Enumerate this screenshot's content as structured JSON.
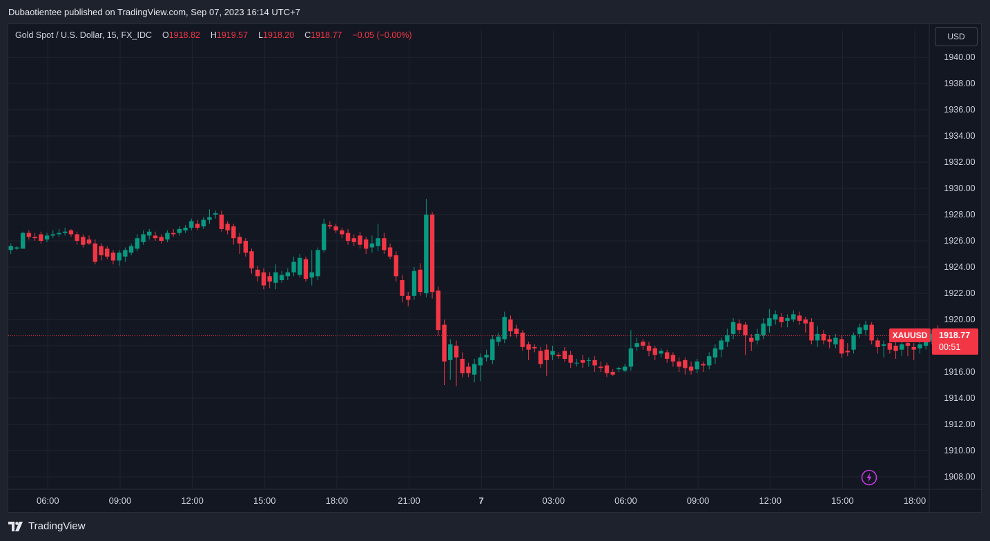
{
  "header": {
    "publisher_line": "Dubaotientee published on TradingView.com, Sep 07, 2023 16:14 UTC+7"
  },
  "legend": {
    "symbol_line": "Gold Spot / U.S. Dollar, 15, FX_IDC",
    "open_label": "O",
    "open_value": "1918.82",
    "high_label": "H",
    "high_value": "1919.57",
    "low_label": "L",
    "low_value": "1918.20",
    "close_label": "C",
    "close_value": "1918.77",
    "change": "−0.05 (−0.00%)"
  },
  "toolbar": {
    "currency_label": "USD"
  },
  "last_price": {
    "symbol": "XAUUSD",
    "price": "1918.77",
    "price_value": 1918.77,
    "countdown": "00:51"
  },
  "footer": {
    "brand": "TradingView"
  },
  "colors": {
    "background": "#131722",
    "frame": "#1e222d",
    "grid": "#1f2430",
    "up": "#089981",
    "down": "#f23645",
    "text": "#d1d4dc"
  },
  "icons": {
    "brand_logo": "tradingview-logo-icon",
    "bolt": "lightning-bolt-icon"
  },
  "chart_data": {
    "type": "candlestick",
    "interval": "15",
    "ylim": [
      1906.5,
      1941.0
    ],
    "y_ticks": [
      1940,
      1938,
      1936,
      1934,
      1932,
      1930,
      1928,
      1926,
      1924,
      1922,
      1920,
      1918,
      1916,
      1914,
      1912,
      1910,
      1908
    ],
    "y_tick_labels": [
      "1940.00",
      "1938.00",
      "1936.00",
      "1934.00",
      "1932.00",
      "1930.00",
      "1928.00",
      "1926.00",
      "1924.00",
      "1922.00",
      "1920.00",
      "1918.00",
      "1916.00",
      "1914.00",
      "1912.00",
      "1910.00",
      "1908.00"
    ],
    "x_tick_labels": [
      "06:00",
      "09:00",
      "12:00",
      "15:00",
      "18:00",
      "21:00",
      "7",
      "03:00",
      "06:00",
      "09:00",
      "12:00",
      "15:00",
      "18:00"
    ],
    "x_tick_bar_index": [
      6,
      18,
      30,
      42,
      54,
      66,
      78,
      90,
      102,
      114,
      126,
      138,
      150
    ],
    "candles": [
      [
        1925.3,
        1925.6,
        1925.0,
        1925.8
      ],
      [
        1925.4,
        1925.5,
        1925.3,
        1925.6
      ],
      [
        1925.4,
        1926.6,
        1925.4,
        1926.7
      ],
      [
        1926.6,
        1926.3,
        1926.1,
        1926.8
      ],
      [
        1926.3,
        1926.2,
        1926.0,
        1926.6
      ],
      [
        1926.5,
        1926.0,
        1925.8,
        1926.7
      ],
      [
        1926.1,
        1926.4,
        1925.9,
        1926.6
      ],
      [
        1926.4,
        1926.5,
        1926.2,
        1926.8
      ],
      [
        1926.5,
        1926.6,
        1926.3,
        1926.9
      ],
      [
        1926.6,
        1926.7,
        1926.4,
        1927.0
      ],
      [
        1926.8,
        1926.5,
        1926.3,
        1926.9
      ],
      [
        1926.5,
        1926.0,
        1925.7,
        1926.7
      ],
      [
        1926.3,
        1925.7,
        1925.5,
        1926.5
      ],
      [
        1926.1,
        1925.8,
        1925.7,
        1926.4
      ],
      [
        1925.8,
        1924.4,
        1924.2,
        1926.1
      ],
      [
        1925.6,
        1924.9,
        1924.5,
        1925.8
      ],
      [
        1925.4,
        1924.8,
        1924.6,
        1925.6
      ],
      [
        1925.1,
        1924.5,
        1924.2,
        1925.3
      ],
      [
        1924.5,
        1925.1,
        1924.1,
        1925.3
      ],
      [
        1924.8,
        1925.3,
        1924.4,
        1925.5
      ],
      [
        1925.1,
        1925.6,
        1924.9,
        1925.8
      ],
      [
        1925.4,
        1926.2,
        1925.2,
        1926.5
      ],
      [
        1925.9,
        1926.5,
        1925.7,
        1926.8
      ],
      [
        1926.4,
        1926.7,
        1926.1,
        1926.9
      ],
      [
        1926.4,
        1926.2,
        1926.0,
        1926.7
      ],
      [
        1926.3,
        1926.0,
        1925.8,
        1926.5
      ],
      [
        1926.1,
        1926.6,
        1925.9,
        1926.8
      ],
      [
        1926.6,
        1926.5,
        1926.3,
        1926.9
      ],
      [
        1926.6,
        1926.9,
        1926.4,
        1927.1
      ],
      [
        1926.8,
        1927.0,
        1926.6,
        1927.2
      ],
      [
        1927.0,
        1927.5,
        1926.8,
        1927.7
      ],
      [
        1927.3,
        1927.0,
        1926.8,
        1927.6
      ],
      [
        1927.1,
        1927.6,
        1926.9,
        1927.8
      ],
      [
        1927.6,
        1927.8,
        1927.3,
        1928.4
      ],
      [
        1928.0,
        1928.1,
        1927.7,
        1928.3
      ],
      [
        1928.0,
        1926.9,
        1926.7,
        1928.3
      ],
      [
        1927.3,
        1926.8,
        1926.5,
        1927.5
      ],
      [
        1927.1,
        1926.2,
        1925.7,
        1927.3
      ],
      [
        1926.3,
        1925.8,
        1925.0,
        1926.6
      ],
      [
        1926.0,
        1925.1,
        1924.8,
        1926.2
      ],
      [
        1925.2,
        1923.9,
        1923.5,
        1925.4
      ],
      [
        1923.8,
        1923.3,
        1922.9,
        1924.1
      ],
      [
        1923.6,
        1922.6,
        1922.3,
        1923.9
      ],
      [
        1923.3,
        1922.9,
        1922.4,
        1923.6
      ],
      [
        1922.8,
        1923.6,
        1922.3,
        1924.2
      ],
      [
        1923.0,
        1923.4,
        1922.8,
        1923.7
      ],
      [
        1923.3,
        1923.6,
        1923.0,
        1923.9
      ],
      [
        1923.6,
        1924.4,
        1923.3,
        1924.8
      ],
      [
        1923.4,
        1924.7,
        1923.2,
        1925.0
      ],
      [
        1924.6,
        1923.1,
        1922.9,
        1924.8
      ],
      [
        1923.2,
        1923.6,
        1922.6,
        1925.3
      ],
      [
        1923.3,
        1925.3,
        1923.0,
        1925.5
      ],
      [
        1925.3,
        1927.3,
        1925.1,
        1927.7
      ],
      [
        1927.2,
        1927.1,
        1926.9,
        1927.5
      ],
      [
        1927.1,
        1926.8,
        1926.6,
        1927.3
      ],
      [
        1926.8,
        1926.5,
        1926.2,
        1927.0
      ],
      [
        1926.6,
        1926.0,
        1925.7,
        1926.9
      ],
      [
        1926.2,
        1925.9,
        1925.6,
        1926.5
      ],
      [
        1926.4,
        1925.7,
        1925.4,
        1926.7
      ],
      [
        1926.1,
        1925.4,
        1925.0,
        1926.3
      ],
      [
        1925.5,
        1925.8,
        1925.1,
        1926.4
      ],
      [
        1925.6,
        1926.2,
        1925.2,
        1927.3
      ],
      [
        1926.2,
        1925.3,
        1925.0,
        1926.6
      ],
      [
        1925.5,
        1924.8,
        1924.6,
        1925.8
      ],
      [
        1924.9,
        1923.3,
        1922.9,
        1925.2
      ],
      [
        1923.0,
        1921.8,
        1921.3,
        1923.4
      ],
      [
        1921.8,
        1921.5,
        1921.0,
        1922.1
      ],
      [
        1921.8,
        1923.7,
        1921.5,
        1924.0
      ],
      [
        1923.8,
        1922.1,
        1921.8,
        1924.3
      ],
      [
        1922.0,
        1928.0,
        1921.7,
        1929.2
      ],
      [
        1928.0,
        1922.1,
        1921.6,
        1928.2
      ],
      [
        1922.2,
        1919.2,
        1918.8,
        1922.5
      ],
      [
        1919.6,
        1916.8,
        1915.0,
        1920.0
      ],
      [
        1916.9,
        1918.1,
        1915.4,
        1918.5
      ],
      [
        1918.0,
        1917.1,
        1914.9,
        1918.4
      ],
      [
        1917.0,
        1915.9,
        1915.6,
        1917.5
      ],
      [
        1916.4,
        1915.9,
        1915.6,
        1916.7
      ],
      [
        1915.8,
        1916.6,
        1915.2,
        1917.0
      ],
      [
        1916.5,
        1917.1,
        1915.3,
        1917.4
      ],
      [
        1917.1,
        1917.3,
        1916.8,
        1917.7
      ],
      [
        1916.9,
        1918.5,
        1916.6,
        1918.8
      ],
      [
        1918.3,
        1918.7,
        1918.0,
        1919.0
      ],
      [
        1918.5,
        1920.2,
        1918.2,
        1920.6
      ],
      [
        1920.0,
        1919.1,
        1918.7,
        1920.3
      ],
      [
        1919.3,
        1918.9,
        1918.6,
        1919.6
      ],
      [
        1919.0,
        1917.9,
        1917.6,
        1919.2
      ],
      [
        1918.1,
        1917.7,
        1916.9,
        1918.3
      ],
      [
        1917.9,
        1917.8,
        1917.5,
        1918.1
      ],
      [
        1917.6,
        1916.6,
        1916.3,
        1917.9
      ],
      [
        1917.7,
        1916.9,
        1915.7,
        1918.1
      ],
      [
        1917.3,
        1917.6,
        1916.9,
        1918.0
      ],
      [
        1917.3,
        1917.2,
        1917.0,
        1917.5
      ],
      [
        1917.6,
        1917.0,
        1916.8,
        1917.9
      ],
      [
        1917.3,
        1916.7,
        1916.3,
        1917.6
      ],
      [
        1916.7,
        1916.7,
        1916.4,
        1917.0
      ],
      [
        1916.9,
        1916.7,
        1916.3,
        1917.3
      ],
      [
        1916.9,
        1916.9,
        1916.4,
        1917.1
      ],
      [
        1916.9,
        1916.5,
        1916.0,
        1917.2
      ],
      [
        1916.4,
        1916.3,
        1916.0,
        1916.8
      ],
      [
        1916.5,
        1915.9,
        1915.6,
        1916.7
      ],
      [
        1916.0,
        1915.8,
        1915.7,
        1916.2
      ],
      [
        1916.2,
        1916.3,
        1916.0,
        1916.4
      ],
      [
        1916.1,
        1916.4,
        1916.0,
        1916.6
      ],
      [
        1916.4,
        1917.8,
        1916.1,
        1919.2
      ],
      [
        1917.9,
        1918.2,
        1917.6,
        1918.6
      ],
      [
        1918.3,
        1918.0,
        1917.7,
        1918.5
      ],
      [
        1918.0,
        1917.6,
        1917.2,
        1918.3
      ],
      [
        1917.8,
        1917.3,
        1916.9,
        1918.0
      ],
      [
        1917.4,
        1917.6,
        1917.1,
        1917.8
      ],
      [
        1917.5,
        1917.0,
        1916.7,
        1917.7
      ],
      [
        1917.3,
        1916.8,
        1916.4,
        1917.5
      ],
      [
        1916.8,
        1916.4,
        1916.0,
        1917.1
      ],
      [
        1916.9,
        1916.3,
        1915.8,
        1917.1
      ],
      [
        1916.4,
        1916.1,
        1915.8,
        1916.8
      ],
      [
        1916.2,
        1916.8,
        1915.9,
        1917.0
      ],
      [
        1916.6,
        1916.5,
        1916.0,
        1916.8
      ],
      [
        1916.5,
        1917.2,
        1916.2,
        1917.5
      ],
      [
        1917.1,
        1917.8,
        1916.6,
        1918.1
      ],
      [
        1917.7,
        1918.4,
        1917.1,
        1918.6
      ],
      [
        1918.3,
        1918.8,
        1917.9,
        1919.3
      ],
      [
        1918.9,
        1919.8,
        1918.5,
        1920.1
      ],
      [
        1919.7,
        1919.2,
        1918.9,
        1920.0
      ],
      [
        1919.6,
        1918.8,
        1917.3,
        1919.8
      ],
      [
        1918.6,
        1918.3,
        1917.6,
        1918.9
      ],
      [
        1918.4,
        1918.9,
        1918.1,
        1919.3
      ],
      [
        1918.8,
        1919.7,
        1918.5,
        1920.1
      ],
      [
        1919.5,
        1920.1,
        1919.0,
        1920.8
      ],
      [
        1920.0,
        1920.4,
        1919.6,
        1920.7
      ],
      [
        1920.2,
        1919.8,
        1919.4,
        1920.5
      ],
      [
        1919.9,
        1920.1,
        1919.4,
        1920.4
      ],
      [
        1920.0,
        1920.4,
        1919.8,
        1920.7
      ],
      [
        1920.3,
        1919.9,
        1919.6,
        1920.6
      ],
      [
        1920.0,
        1919.7,
        1919.0,
        1920.2
      ],
      [
        1919.8,
        1918.4,
        1918.1,
        1920.1
      ],
      [
        1918.4,
        1918.9,
        1917.9,
        1919.5
      ],
      [
        1918.9,
        1918.4,
        1918.1,
        1919.2
      ],
      [
        1918.5,
        1918.3,
        1917.8,
        1918.8
      ],
      [
        1918.1,
        1918.6,
        1917.8,
        1918.9
      ],
      [
        1918.5,
        1917.4,
        1917.1,
        1918.8
      ],
      [
        1917.6,
        1917.5,
        1917.2,
        1918.2
      ],
      [
        1917.7,
        1918.8,
        1917.4,
        1919.0
      ],
      [
        1918.9,
        1919.4,
        1918.6,
        1919.7
      ],
      [
        1919.2,
        1919.6,
        1918.8,
        1919.9
      ],
      [
        1919.6,
        1918.4,
        1918.1,
        1919.8
      ],
      [
        1918.4,
        1917.9,
        1917.4,
        1918.6
      ],
      [
        1918.0,
        1918.1,
        1917.1,
        1918.4
      ],
      [
        1918.2,
        1917.7,
        1917.4,
        1918.4
      ],
      [
        1918.0,
        1917.6,
        1917.0,
        1918.3
      ],
      [
        1917.7,
        1918.1,
        1917.2,
        1918.3
      ],
      [
        1918.2,
        1918.0,
        1917.2,
        1918.4
      ],
      [
        1917.9,
        1917.7,
        1916.9,
        1918.2
      ],
      [
        1917.8,
        1918.1,
        1917.4,
        1918.4
      ],
      [
        1918.0,
        1918.5,
        1917.7,
        1919.3
      ],
      [
        1918.4,
        1918.9,
        1918.1,
        1919.2
      ],
      [
        1918.82,
        1918.77,
        1918.2,
        1919.57
      ]
    ]
  }
}
